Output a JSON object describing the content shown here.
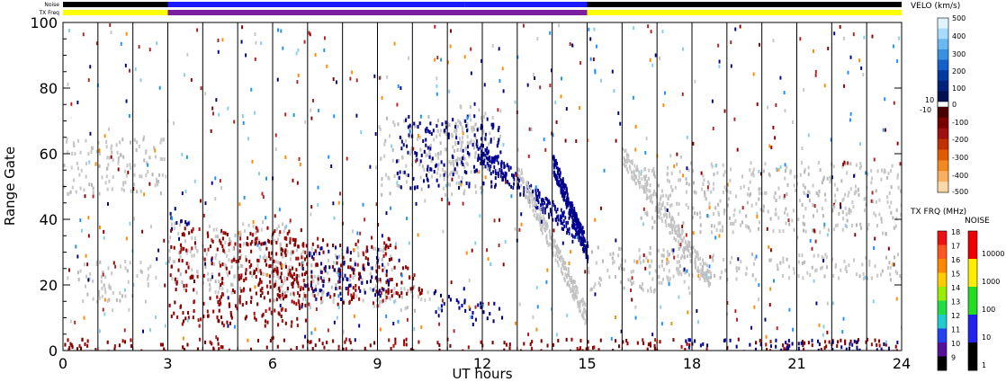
{
  "chart_data": {
    "type": "heatmap",
    "xlabel": "UT hours",
    "ylabel": "Range Gate",
    "xlim": [
      0,
      24
    ],
    "ylim": [
      0,
      100
    ],
    "x_ticks": [
      "0",
      "3",
      "6",
      "9",
      "12",
      "15",
      "18",
      "21",
      "24"
    ],
    "y_ticks": [
      "0",
      "20",
      "40",
      "60",
      "80",
      "100"
    ],
    "top_strips": [
      {
        "label": "Noise",
        "segments": [
          {
            "x0": 0,
            "x1": 3,
            "color": "#000000"
          },
          {
            "x0": 3,
            "x1": 11.5,
            "color": "#1a1aff"
          },
          {
            "x0": 11.5,
            "x1": 15,
            "color": "#1a1aff"
          },
          {
            "x0": 15,
            "x1": 24,
            "color": "#000000"
          }
        ]
      },
      {
        "label": "TX Freq",
        "segments": [
          {
            "x0": 0,
            "x1": 3,
            "color": "#ffff00"
          },
          {
            "x0": 3,
            "x1": 15,
            "color": "#7a1fa0"
          },
          {
            "x0": 15,
            "x1": 24,
            "color": "#ffff00"
          }
        ]
      }
    ],
    "velocity_colorbar": {
      "title": "VELO (km/s)",
      "labels": [
        "500",
        "400",
        "300",
        "200",
        "100",
        "10",
        "0",
        "-10",
        "-100",
        "-200",
        "-300",
        "-400",
        "-500"
      ]
    },
    "freq_colorbar": {
      "title": "TX FRQ (MHz)",
      "labels": [
        "18",
        "17",
        "16",
        "15",
        "14",
        "13",
        "12",
        "11",
        "10",
        "9"
      ],
      "colors": [
        "#ee1111",
        "#ff5522",
        "#ff8800",
        "#ffcc00",
        "#99ee00",
        "#22dd44",
        "#22cccc",
        "#2244ee",
        "#551199",
        "#000000"
      ]
    },
    "noise_colorbar": {
      "title": "NOISE",
      "labels": [
        "10000",
        "1000",
        "100",
        "10",
        "1"
      ],
      "colors": [
        "#ee0000",
        "#ffee00",
        "#22dd22",
        "#2222ee",
        "#000000"
      ]
    },
    "regions": [
      {
        "kind": "grey",
        "x0": 0,
        "x1": 3,
        "y0": 48,
        "y1": 66
      },
      {
        "kind": "grey",
        "x0": 0.4,
        "x1": 2.5,
        "y0": 15,
        "y1": 28
      },
      {
        "kind": "grey",
        "x0": 3,
        "x1": 6.5,
        "y0": 18,
        "y1": 40
      },
      {
        "kind": "grey",
        "x0": 6,
        "x1": 9.5,
        "y0": 15,
        "y1": 32
      },
      {
        "kind": "grey",
        "x0": 9,
        "x1": 10.5,
        "y0": 12,
        "y1": 20
      },
      {
        "kind": "grey",
        "x0": 15,
        "x1": 18.3,
        "y0": 18,
        "y1": 32
      },
      {
        "kind": "grey",
        "x0": 17,
        "x1": 24,
        "y0": 22,
        "y1": 30
      },
      {
        "kind": "grey",
        "x0": 16.5,
        "x1": 24,
        "y0": 36,
        "y1": 58
      },
      {
        "kind": "grey",
        "x0": 9,
        "x1": 12,
        "y0": 48,
        "y1": 72
      },
      {
        "kind": "grey",
        "x0": 11,
        "x1": 12.5,
        "y0": 55,
        "y1": 75
      },
      {
        "kind": "red",
        "x0": 3,
        "x1": 7,
        "y0": 8,
        "y1": 38
      },
      {
        "kind": "red",
        "x0": 5,
        "x1": 9.5,
        "y0": 14,
        "y1": 35
      },
      {
        "kind": "red",
        "x0": 9,
        "x1": 10.3,
        "y0": 16,
        "y1": 26
      },
      {
        "kind": "red",
        "x0": 0,
        "x1": 24,
        "y0": 0,
        "y1": 4
      },
      {
        "kind": "blue",
        "x0": 7,
        "x1": 9.3,
        "y0": 16,
        "y1": 32
      },
      {
        "kind": "blue",
        "x0": 10.5,
        "x1": 11.5,
        "y0": 12,
        "y1": 20
      },
      {
        "kind": "blue",
        "x0": 11.5,
        "x1": 12.6,
        "y0": 8,
        "y1": 15
      },
      {
        "kind": "blue",
        "x0": 3,
        "x1": 3.6,
        "y0": 37,
        "y1": 45
      },
      {
        "kind": "blue",
        "x0": 17.5,
        "x1": 24,
        "y0": 0,
        "y1": 4
      },
      {
        "kind": "blue",
        "x0": 9.5,
        "x1": 12.5,
        "y0": 50,
        "y1": 72
      },
      {
        "kind": "diag-blue",
        "x0": 11.8,
        "y0": 62,
        "x1": 14.9,
        "y1": 35
      },
      {
        "kind": "diag-blue",
        "x0": 14.0,
        "y0": 58,
        "x1": 15.0,
        "y1": 30
      },
      {
        "kind": "diag-grey",
        "x0": 13.0,
        "y0": 55,
        "x1": 15.0,
        "y1": 10
      },
      {
        "kind": "diag-grey",
        "x0": 16.0,
        "y0": 60,
        "x1": 18.5,
        "y1": 22
      }
    ]
  }
}
